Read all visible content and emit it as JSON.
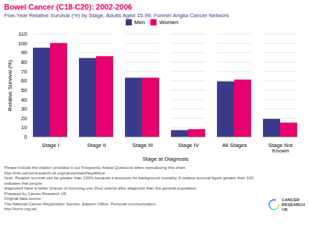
{
  "chart_data": {
    "type": "bar",
    "title": "Bowel Cancer (C18-C20): 2002-2006",
    "subtitle": "Five-Year Relative Survival (%) by Stage, Adults Aged 15-99, Former Anglia Cancer Network",
    "categories": [
      "Stage I",
      "Stage II",
      "Stage III",
      "Stage IV",
      "All Stages",
      "Stage Not\nKnown"
    ],
    "series": [
      {
        "name": "Men",
        "color": "#3b3b8c",
        "values": [
          95,
          84,
          63,
          7,
          59,
          19
        ]
      },
      {
        "name": "Women",
        "color": "#e8006f",
        "values": [
          100,
          86,
          63,
          8,
          61,
          15
        ]
      }
    ],
    "xlabel": "Stage at Diagnosis",
    "ylabel": "Relative Survival (%)",
    "ylim": [
      0,
      110
    ],
    "yticks": [
      0,
      10,
      20,
      30,
      40,
      50,
      60,
      70,
      80,
      90,
      100,
      110
    ],
    "grid": true,
    "legend": "top",
    "annotations": [
      "Please include the citation provided in our Frequently Asked Questions when reproducing this chart: http://info.cancerresearch.uk.org/cancerstats/faqs#How",
      "Note: Relative survival can be greater than 100% because it accounts for background mortality. A relative survival figure greater than 100 indicates that people",
      "diagnosed have a better chance of surviving one (five) year(s) after diagnosis than the general population.",
      "Prepared by Cancer Research UK",
      "Original data source:",
      "The National Cancer Registration Service, Eastern Office. Personal communication.",
      "http://ecric.org.uk/"
    ],
    "logo_text": [
      "CANCER",
      "RESEARCH",
      "UK"
    ]
  }
}
